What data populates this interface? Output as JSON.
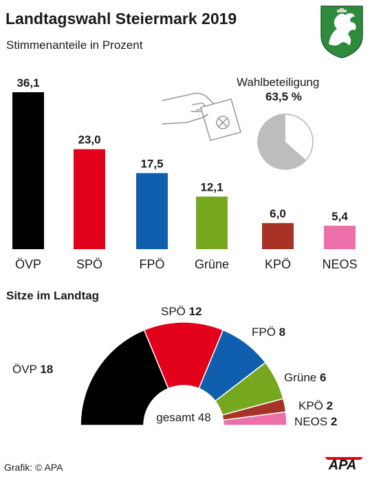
{
  "title": "Landtagswahl Steiermark 2019",
  "subtitle": "Stimmenanteile in Prozent",
  "turnout": {
    "label": "Wahlbeteiligung",
    "value_text": "63,5 %",
    "value": 63.5
  },
  "seats_heading": "Sitze im Landtag",
  "seats_total_text": "gesamt 48",
  "source": "Grafik: © APA",
  "logo_text": "APA",
  "chart_data": [
    {
      "type": "bar",
      "categories": [
        "ÖVP",
        "SPÖ",
        "FPÖ",
        "Grüne",
        "KPÖ",
        "NEOS"
      ],
      "values": [
        36.1,
        23.0,
        17.5,
        12.1,
        6.0,
        5.4
      ],
      "value_labels": [
        "36,1",
        "23,0",
        "17,5",
        "12,1",
        "6,0",
        "5,4"
      ],
      "colors": [
        "#000000",
        "#e2001a",
        "#0f5fae",
        "#76a81f",
        "#a63325",
        "#ed6fa9"
      ],
      "ylim": [
        0,
        36.1
      ]
    },
    {
      "type": "pie",
      "categories": [
        "ÖVP",
        "SPÖ",
        "FPÖ",
        "Grüne",
        "KPÖ",
        "NEOS"
      ],
      "values": [
        18,
        12,
        8,
        6,
        2,
        2
      ],
      "total": 48,
      "colors": [
        "#000000",
        "#e2001a",
        "#0f5fae",
        "#76a81f",
        "#a63325",
        "#ed6fa9"
      ]
    }
  ]
}
